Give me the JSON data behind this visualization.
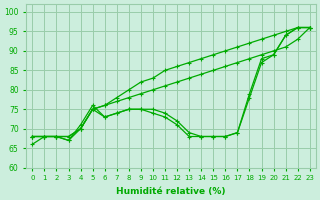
{
  "xlabel": "Humidité relative (%)",
  "xlim": [
    -0.5,
    23.5
  ],
  "ylim": [
    60,
    102
  ],
  "yticks": [
    60,
    65,
    70,
    75,
    80,
    85,
    90,
    95,
    100
  ],
  "xticks": [
    0,
    1,
    2,
    3,
    4,
    5,
    6,
    7,
    8,
    9,
    10,
    11,
    12,
    13,
    14,
    15,
    16,
    17,
    18,
    19,
    20,
    21,
    22,
    23
  ],
  "bg_color": "#cceedd",
  "grid_color": "#99ccaa",
  "line_color": "#00aa00",
  "series1": [
    68,
    68,
    68,
    68,
    70,
    75,
    76,
    78,
    80,
    82,
    83,
    85,
    86,
    87,
    88,
    89,
    90,
    91,
    92,
    93,
    94,
    95,
    96,
    96
  ],
  "series2": [
    68,
    68,
    68,
    68,
    70,
    75,
    76,
    77,
    78,
    79,
    80,
    81,
    82,
    83,
    84,
    85,
    86,
    87,
    88,
    89,
    90,
    91,
    93,
    96
  ],
  "series3": [
    68,
    68,
    68,
    67,
    70,
    75,
    73,
    74,
    75,
    75,
    75,
    74,
    72,
    69,
    68,
    68,
    68,
    69,
    78,
    87,
    89,
    94,
    96,
    96
  ],
  "series4": [
    66,
    68,
    68,
    67,
    71,
    76,
    73,
    74,
    75,
    75,
    74,
    73,
    71,
    68,
    68,
    68,
    68,
    69,
    79,
    88,
    89,
    94,
    96,
    96
  ],
  "figsize": [
    3.2,
    2.0
  ],
  "dpi": 100
}
